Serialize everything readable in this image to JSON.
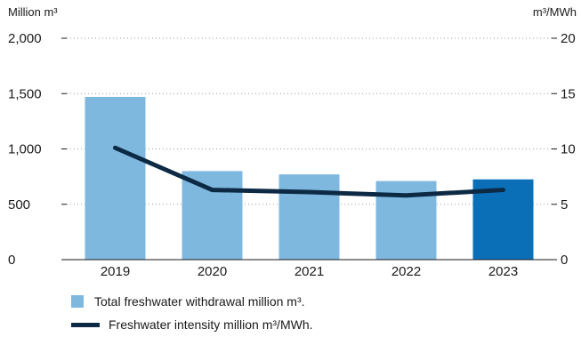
{
  "chart_data": {
    "type": "bar",
    "left_axis_label": "Million m³",
    "right_axis_label": "m³/MWh",
    "left_ticks": [
      "0",
      "500",
      "1,000",
      "1,500",
      "2,000"
    ],
    "right_ticks": [
      "0",
      "5",
      "10",
      "15",
      "20"
    ],
    "ylim_left": [
      0,
      2000
    ],
    "ylim_right": [
      0,
      20
    ],
    "categories": [
      "2019",
      "2020",
      "2021",
      "2022",
      "2023"
    ],
    "series": [
      {
        "name": "Total freshwater withdrawal million m³.",
        "type": "bar",
        "axis": "left",
        "values": [
          1470,
          800,
          770,
          710,
          725
        ],
        "colors": [
          "#7fb8df",
          "#7fb8df",
          "#7fb8df",
          "#7fb8df",
          "#0b6fb8"
        ]
      },
      {
        "name": "Freshwater intensity million m³/MWh.",
        "type": "line",
        "axis": "right",
        "values": [
          10.1,
          6.3,
          6.1,
          5.8,
          6.3
        ],
        "color": "#0d2a45"
      }
    ],
    "grid": "horizontal dotted"
  }
}
